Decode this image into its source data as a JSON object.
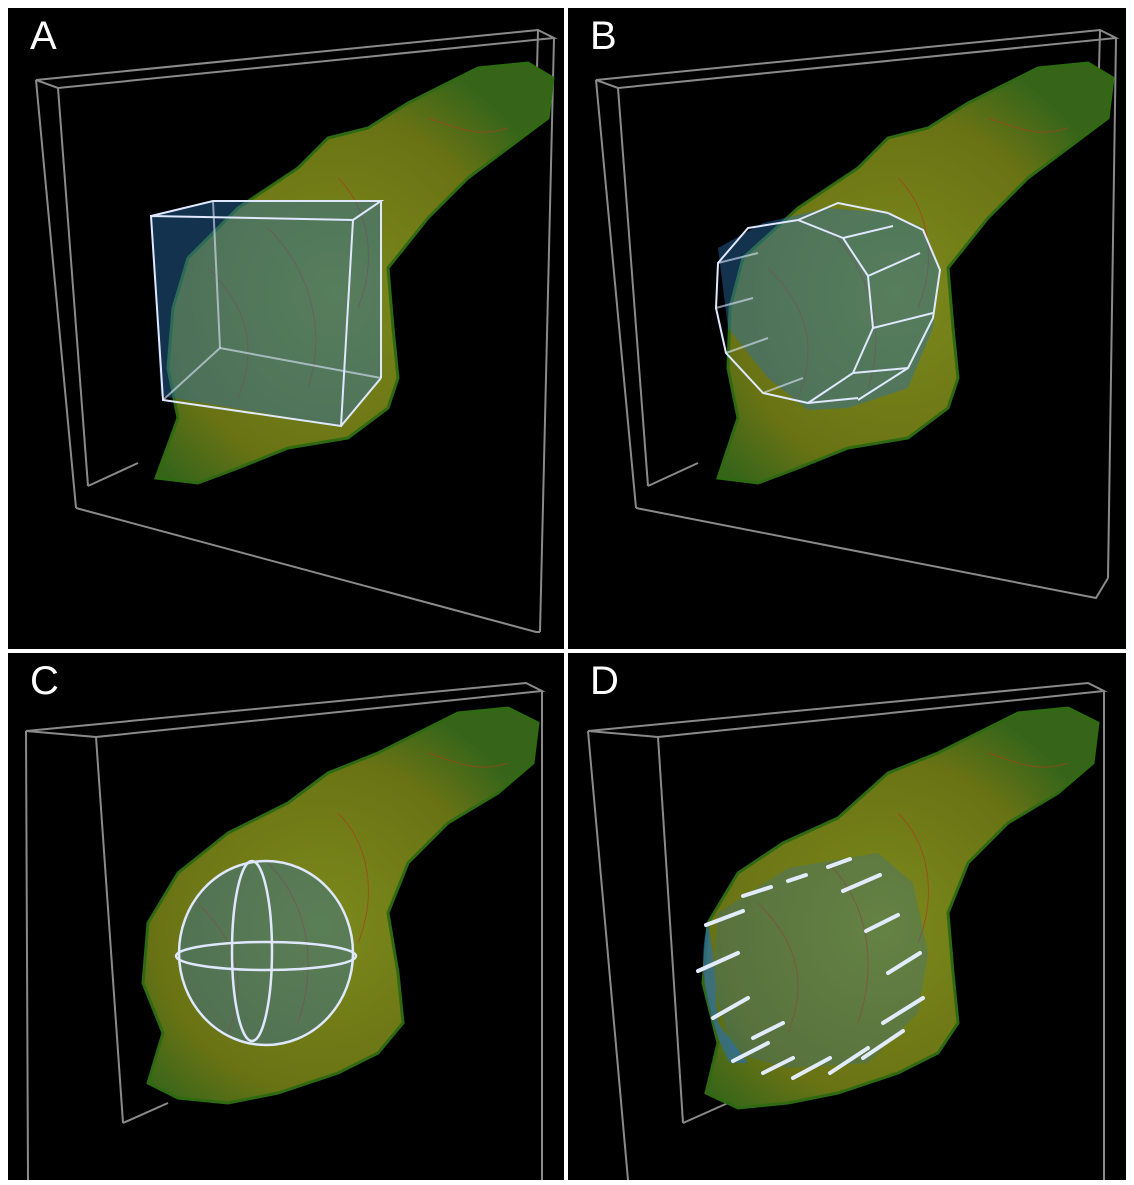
{
  "panels": [
    {
      "id": "A",
      "label": "A",
      "selection_shape": "cube"
    },
    {
      "id": "B",
      "label": "B",
      "selection_shape": "cylinder"
    },
    {
      "id": "C",
      "label": "C",
      "selection_shape": "sphere"
    },
    {
      "id": "D",
      "label": "D",
      "selection_shape": "cylinder-side"
    }
  ],
  "colors": {
    "background": "#000000",
    "bounding_box": "#8a8a8a",
    "cell_body": "#6f7a16",
    "cell_edge": "#2f6a12",
    "cell_detail_red": "#a8401c",
    "selection_fill": "#2a6fae",
    "selection_outline": "#dfe8ff"
  }
}
